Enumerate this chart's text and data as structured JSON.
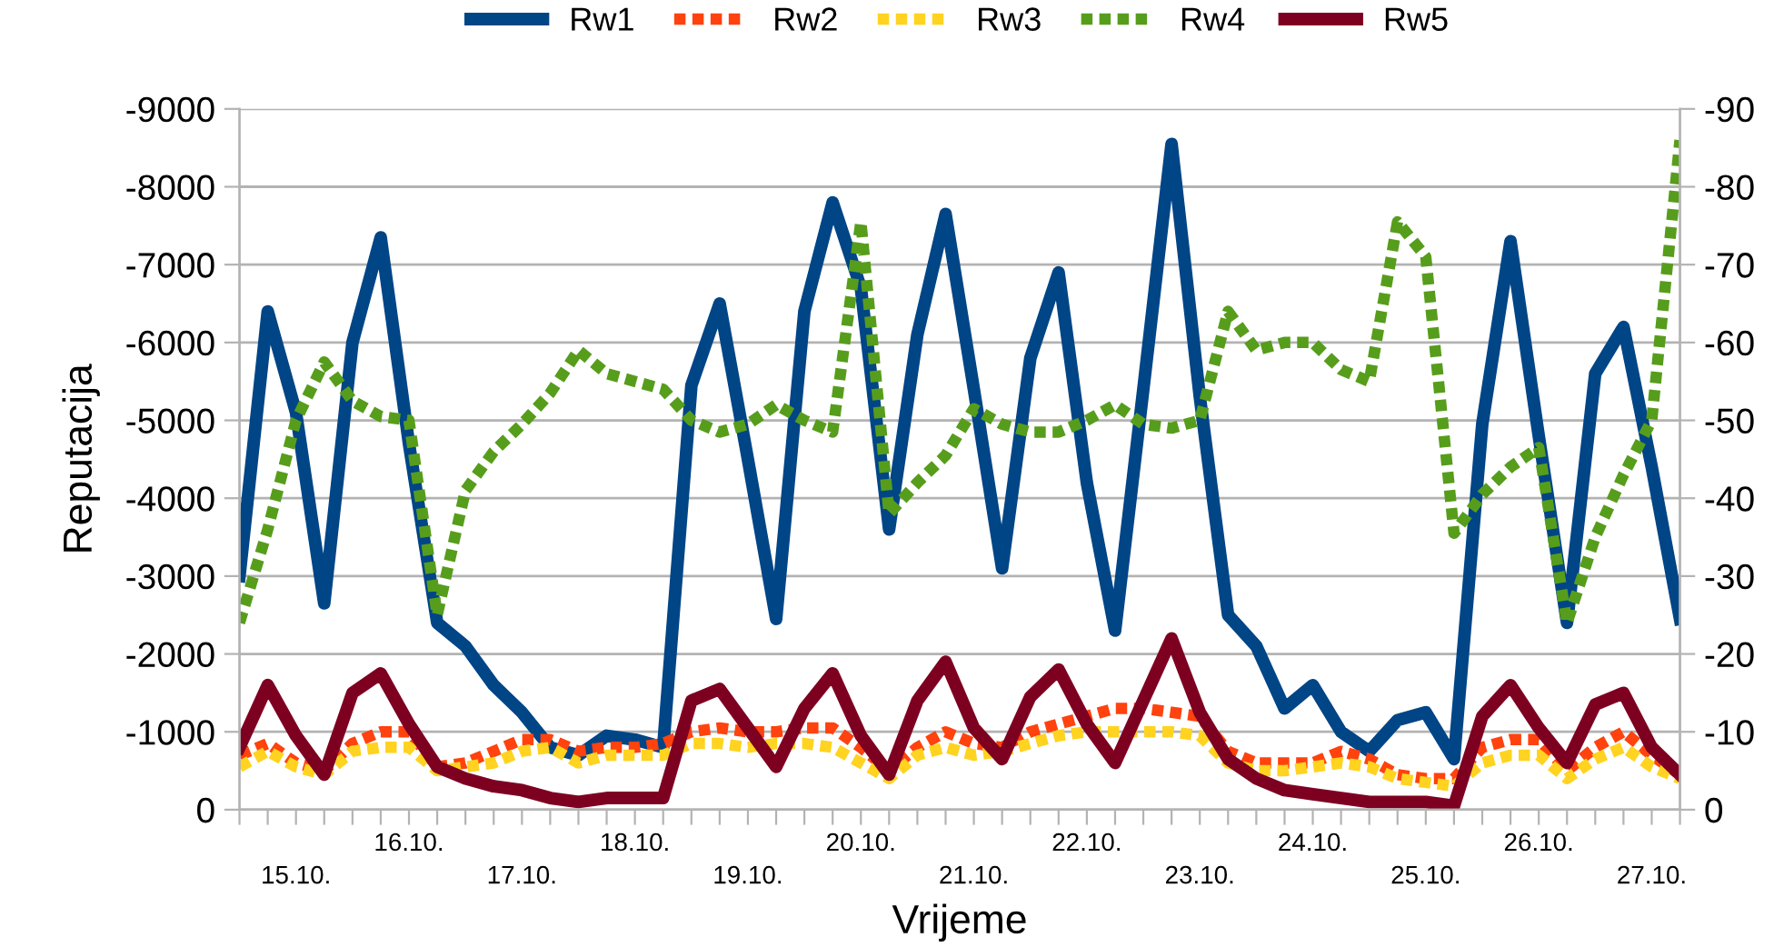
{
  "chart_data": {
    "type": "line",
    "xlabel": "Vrijeme",
    "ylabel": "Reputacija",
    "categories": [
      null,
      null,
      "15.10.",
      null,
      null,
      null,
      "16.10.",
      null,
      null,
      null,
      "17.10.",
      null,
      null,
      null,
      "18.10.",
      null,
      null,
      null,
      "19.10.",
      null,
      null,
      null,
      "20.10.",
      null,
      null,
      null,
      "21.10.",
      null,
      null,
      null,
      "22.10.",
      null,
      null,
      null,
      "23.10.",
      null,
      null,
      null,
      "24.10.",
      null,
      null,
      null,
      "25.10.",
      null,
      null,
      null,
      "26.10.",
      null,
      null,
      null,
      "27.10.",
      null
    ],
    "series": [
      {
        "name": "Rw1",
        "color": "#004586",
        "line_style": "solid",
        "values": [
          -3000,
          -6400,
          -5100,
          -2650,
          -6000,
          -7350,
          -4700,
          -2400,
          -2100,
          -1600,
          -1250,
          -800,
          -700,
          -950,
          -900,
          -800,
          -5450,
          -6500,
          -4500,
          -2450,
          -6400,
          -7800,
          -6700,
          -3600,
          -6100,
          -7650,
          -5400,
          -3100,
          -5800,
          -6900,
          -4200,
          -2300,
          -5400,
          -8550,
          -5300,
          -2500,
          -2100,
          -1300,
          -1600,
          -1000,
          -750,
          -1150,
          -1250,
          -650,
          -4950,
          -7300,
          -4800,
          -2400,
          -5600,
          -6200,
          -4400,
          -2450
        ]
      },
      {
        "name": "Rw2",
        "color": "#ff420e",
        "line_style": "dotted",
        "values": [
          -700,
          -850,
          -600,
          -500,
          -850,
          -1000,
          -1000,
          -550,
          -600,
          -750,
          -900,
          -900,
          -750,
          -800,
          -800,
          -850,
          -1000,
          -1050,
          -1000,
          -1000,
          -1050,
          -1050,
          -800,
          -500,
          -800,
          -1000,
          -850,
          -800,
          -1000,
          -1100,
          -1200,
          -1300,
          -1300,
          -1250,
          -1200,
          -750,
          -600,
          -600,
          -600,
          -750,
          -650,
          -450,
          -400,
          -400,
          -800,
          -900,
          -900,
          -500,
          -800,
          -1000,
          -700,
          -450
        ]
      },
      {
        "name": "Rw3",
        "color": "#ffd320",
        "line_style": "dotted",
        "values": [
          -550,
          -750,
          -550,
          -450,
          -750,
          -800,
          -800,
          -500,
          -550,
          -600,
          -750,
          -800,
          -600,
          -700,
          -700,
          -700,
          -850,
          -850,
          -800,
          -850,
          -850,
          -800,
          -600,
          -400,
          -700,
          -800,
          -700,
          -750,
          -850,
          -950,
          -1000,
          -1000,
          -1000,
          -1000,
          -950,
          -600,
          -500,
          -500,
          -550,
          -600,
          -550,
          -400,
          -350,
          -300,
          -600,
          -700,
          -700,
          -400,
          -650,
          -800,
          -550,
          -400
        ]
      },
      {
        "name": "Rw4",
        "color": "#579d1c",
        "line_style": "dotted",
        "values": [
          -2400,
          -3600,
          -5000,
          -5750,
          -5250,
          -5050,
          -5000,
          -2500,
          -4100,
          -4600,
          -4950,
          -5350,
          -5900,
          -5600,
          -5500,
          -5400,
          -5000,
          -4850,
          -4950,
          -5200,
          -5000,
          -4850,
          -7550,
          -3800,
          -4200,
          -4550,
          -5150,
          -4950,
          -4850,
          -4850,
          -5000,
          -5200,
          -4950,
          -4900,
          -5000,
          -6400,
          -5900,
          -6000,
          -6000,
          -5650,
          -5500,
          -7550,
          -7100,
          -3550,
          -4050,
          -4400,
          -4650,
          -2400,
          -3500,
          -4300,
          -5000,
          -8600
        ]
      },
      {
        "name": "Rw5",
        "color": "#7e0021",
        "line_style": "solid",
        "values": [
          -800,
          -1600,
          -950,
          -450,
          -1500,
          -1750,
          -1100,
          -550,
          -400,
          -300,
          -250,
          -150,
          -100,
          -150,
          -150,
          -150,
          -1400,
          -1550,
          -1050,
          -550,
          -1300,
          -1750,
          -950,
          -450,
          -1400,
          -1900,
          -1050,
          -650,
          -1450,
          -1800,
          -1100,
          -600,
          -1400,
          -2200,
          -1250,
          -650,
          -400,
          -250,
          -200,
          -150,
          -100,
          -100,
          -100,
          -50,
          -1200,
          -1600,
          -1050,
          -600,
          -1350,
          -1500,
          -800,
          -450
        ]
      }
    ],
    "ylim": [
      0,
      -9000
    ],
    "yticks": [
      0,
      -1000,
      -2000,
      -3000,
      -4000,
      -5000,
      -6000,
      -7000,
      -8000,
      -9000
    ],
    "y2lim": [
      0,
      -90
    ],
    "y2ticks": [
      0,
      -10,
      -20,
      -30,
      -40,
      -50,
      -60,
      -70,
      -80,
      -90
    ],
    "grid": "y",
    "legend": "top",
    "marker": "none"
  }
}
